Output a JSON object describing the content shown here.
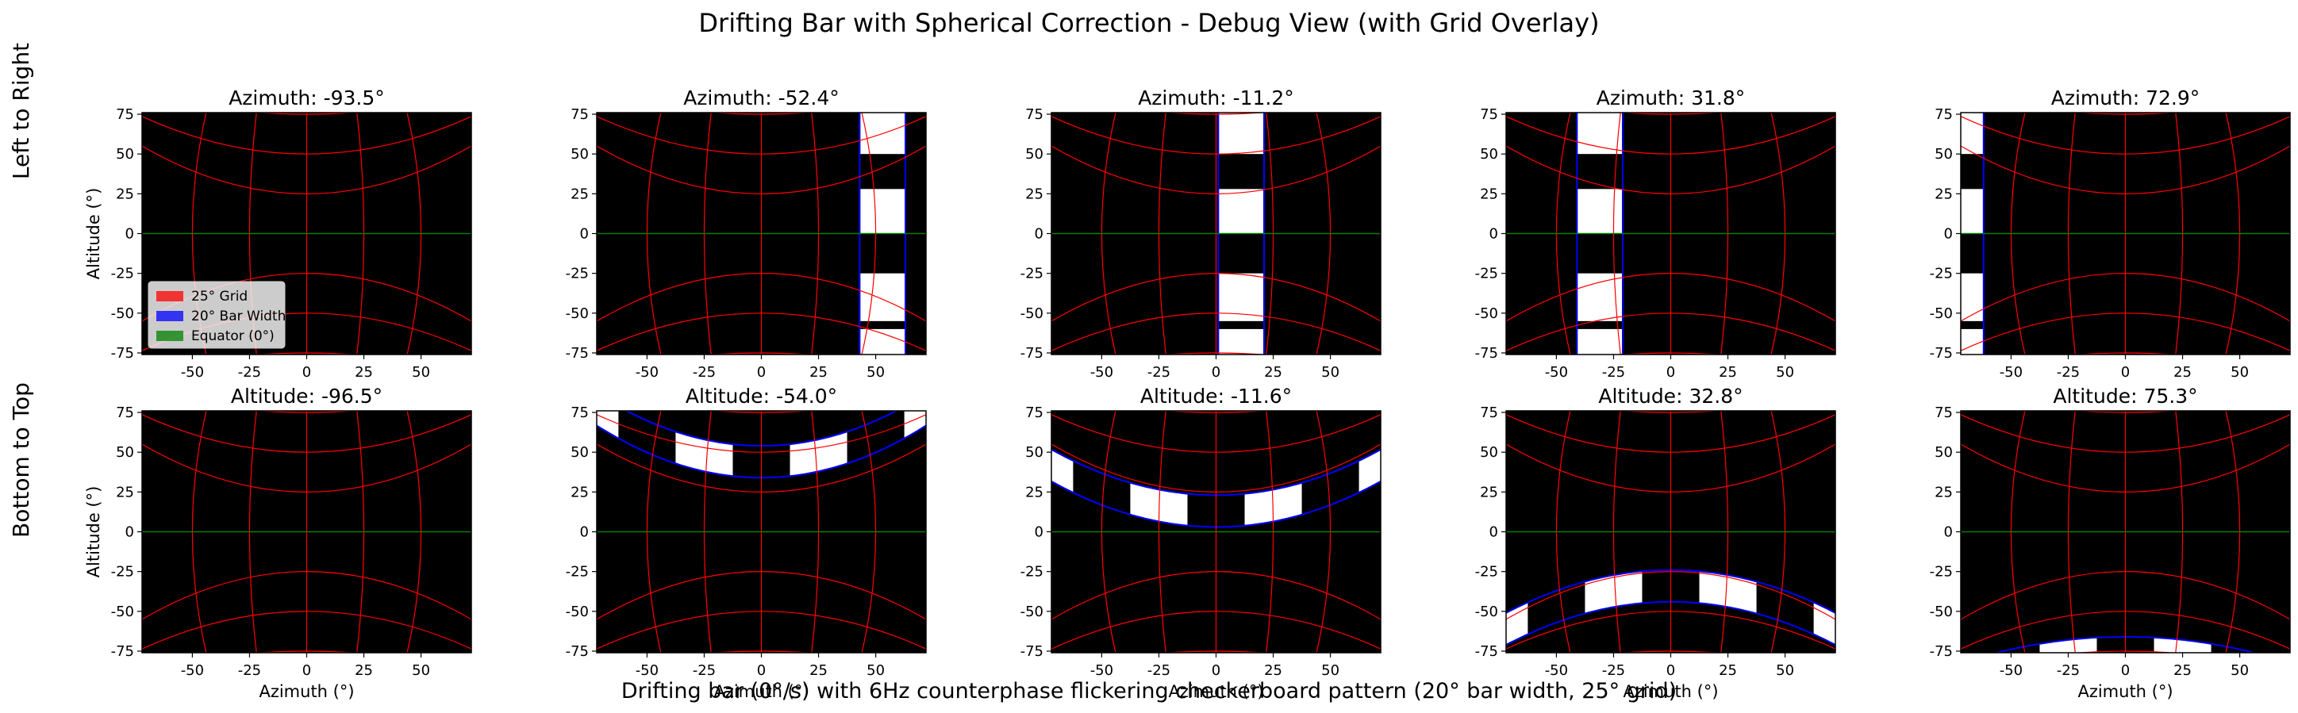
{
  "figure": {
    "title": "Drifting Bar with Spherical Correction - Debug View (with Grid Overlay)",
    "caption": "Drifting bar (0°/s) with 6Hz counterphase flickering checkerboard pattern (20° bar width, 25° grid)",
    "row_labels": [
      "Left to Right",
      "Bottom to Top"
    ]
  },
  "colors": {
    "background": "#000000",
    "grid": "#ff0000",
    "bar_width": "#0000ff",
    "equator": "#008000",
    "pattern_light": "#ffffff"
  },
  "chart_data": [
    {
      "type": "heatmap",
      "row": 0,
      "col": 0,
      "title": "Azimuth: -93.5°",
      "xlabel": "",
      "ylabel": "Altitude (°)",
      "xlim": [
        -72,
        72
      ],
      "ylim": [
        -76,
        76
      ],
      "xticks": [
        "-50",
        "-25",
        "0",
        "25",
        "50"
      ],
      "yticks": [
        "75",
        "50",
        "25",
        "0",
        "-25",
        "-50",
        "-75"
      ],
      "grid_lines_deg": [
        -50,
        -25,
        0,
        25,
        50
      ],
      "bar": null,
      "legend": {
        "location": "lower left",
        "entries": [
          "25° Grid",
          "20° Bar Width",
          "Equator (0°)"
        ]
      }
    },
    {
      "type": "heatmap",
      "row": 0,
      "col": 1,
      "title": "Azimuth: -52.4°",
      "xlabel": "",
      "ylabel": "",
      "xlim": [
        -72,
        72
      ],
      "ylim": [
        -76,
        76
      ],
      "xticks": [
        "-50",
        "-25",
        "0",
        "25",
        "50"
      ],
      "yticks": [
        "75",
        "50",
        "25",
        "0",
        "-25",
        "-50",
        "-75"
      ],
      "bar": {
        "orientation": "vertical",
        "from_deg": 43,
        "to_deg": 63
      }
    },
    {
      "type": "heatmap",
      "row": 0,
      "col": 2,
      "title": "Azimuth: -11.2°",
      "xlabel": "",
      "ylabel": "",
      "xlim": [
        -72,
        72
      ],
      "ylim": [
        -76,
        76
      ],
      "xticks": [
        "-50",
        "-25",
        "0",
        "25",
        "50"
      ],
      "yticks": [
        "75",
        "50",
        "25",
        "0",
        "-25",
        "-50",
        "-75"
      ],
      "bar": {
        "orientation": "vertical",
        "from_deg": 1,
        "to_deg": 21
      }
    },
    {
      "type": "heatmap",
      "row": 0,
      "col": 3,
      "title": "Azimuth: 31.8°",
      "xlabel": "",
      "ylabel": "",
      "xlim": [
        -72,
        72
      ],
      "ylim": [
        -76,
        76
      ],
      "xticks": [
        "-50",
        "-25",
        "0",
        "25",
        "50"
      ],
      "yticks": [
        "75",
        "50",
        "25",
        "0",
        "-25",
        "-50",
        "-75"
      ],
      "bar": {
        "orientation": "vertical",
        "from_deg": -41,
        "to_deg": -21
      }
    },
    {
      "type": "heatmap",
      "row": 0,
      "col": 4,
      "title": "Azimuth: 72.9°",
      "xlabel": "",
      "ylabel": "",
      "xlim": [
        -72,
        72
      ],
      "ylim": [
        -76,
        76
      ],
      "xticks": [
        "-50",
        "-25",
        "0",
        "25",
        "50"
      ],
      "yticks": [
        "75",
        "50",
        "25",
        "0",
        "-25",
        "-50",
        "-75"
      ],
      "bar": {
        "orientation": "vertical",
        "from_deg": -80,
        "to_deg": -62
      }
    },
    {
      "type": "heatmap",
      "row": 1,
      "col": 0,
      "title": "Altitude: -96.5°",
      "xlabel": "Azimuth (°)",
      "ylabel": "Altitude (°)",
      "xlim": [
        -72,
        72
      ],
      "ylim": [
        -76,
        76
      ],
      "xticks": [
        "-50",
        "-25",
        "0",
        "25",
        "50"
      ],
      "yticks": [
        "75",
        "50",
        "25",
        "0",
        "-25",
        "-50",
        "-75"
      ],
      "bar": null
    },
    {
      "type": "heatmap",
      "row": 1,
      "col": 1,
      "title": "Altitude: -54.0°",
      "xlabel": "Azimuth (°)",
      "ylabel": "",
      "xlim": [
        -72,
        72
      ],
      "ylim": [
        -76,
        76
      ],
      "xticks": [
        "-50",
        "-25",
        "0",
        "25",
        "50"
      ],
      "yticks": [
        "75",
        "50",
        "25",
        "0",
        "-25",
        "-50",
        "-75"
      ],
      "bar": {
        "orientation": "horizontal",
        "center_deg": 44,
        "width_deg": 20,
        "curvature_deg": 40
      }
    },
    {
      "type": "heatmap",
      "row": 1,
      "col": 2,
      "title": "Altitude: -11.6°",
      "xlabel": "Azimuth (°)",
      "ylabel": "",
      "xlim": [
        -72,
        72
      ],
      "ylim": [
        -76,
        76
      ],
      "xticks": [
        "-50",
        "-25",
        "0",
        "25",
        "50"
      ],
      "yticks": [
        "75",
        "50",
        "25",
        "0",
        "-25",
        "-50",
        "-75"
      ],
      "bar": {
        "orientation": "horizontal",
        "center_deg": 13,
        "width_deg": 20,
        "curvature_deg": 35
      }
    },
    {
      "type": "heatmap",
      "row": 1,
      "col": 3,
      "title": "Altitude: 32.8°",
      "xlabel": "Azimuth (°)",
      "ylabel": "",
      "xlim": [
        -72,
        72
      ],
      "ylim": [
        -76,
        76
      ],
      "xticks": [
        "-50",
        "-25",
        "0",
        "25",
        "50"
      ],
      "yticks": [
        "75",
        "50",
        "25",
        "0",
        "-25",
        "-50",
        "-75"
      ],
      "bar": {
        "orientation": "horizontal",
        "center_deg": -34,
        "width_deg": 20,
        "curvature_deg": -33
      }
    },
    {
      "type": "heatmap",
      "row": 1,
      "col": 4,
      "title": "Altitude: 75.3°",
      "xlabel": "Azimuth (°)",
      "ylabel": "",
      "xlim": [
        -72,
        72
      ],
      "ylim": [
        -76,
        76
      ],
      "xticks": [
        "-50",
        "-25",
        "0",
        "25",
        "50"
      ],
      "yticks": [
        "75",
        "50",
        "25",
        "0",
        "-25",
        "-50",
        "-75"
      ],
      "bar": {
        "orientation": "horizontal",
        "center_deg": -76,
        "width_deg": 20,
        "curvature_deg": -20
      }
    }
  ]
}
